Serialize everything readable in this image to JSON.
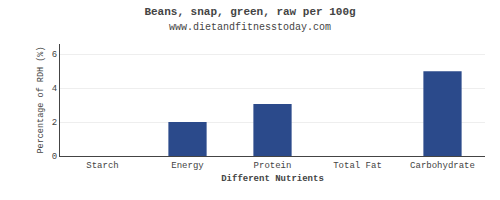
{
  "chart_data": {
    "type": "bar",
    "title": "Beans, snap, green, raw per 100g",
    "subtitle": "www.dietandfitnesstoday.com",
    "categories": [
      "Starch",
      "Energy",
      "Protein",
      "Total Fat",
      "Carbohydrate"
    ],
    "values": [
      0.0,
      2.0,
      3.07,
      0.0,
      5.0
    ],
    "color": "#2b4a8b",
    "xlabel": "Different Nutrients",
    "ylabel": "Percentage of RDH (%)",
    "ylim": [
      0,
      6.6
    ],
    "yticks": [
      0,
      2,
      4,
      6
    ],
    "grid": true
  }
}
